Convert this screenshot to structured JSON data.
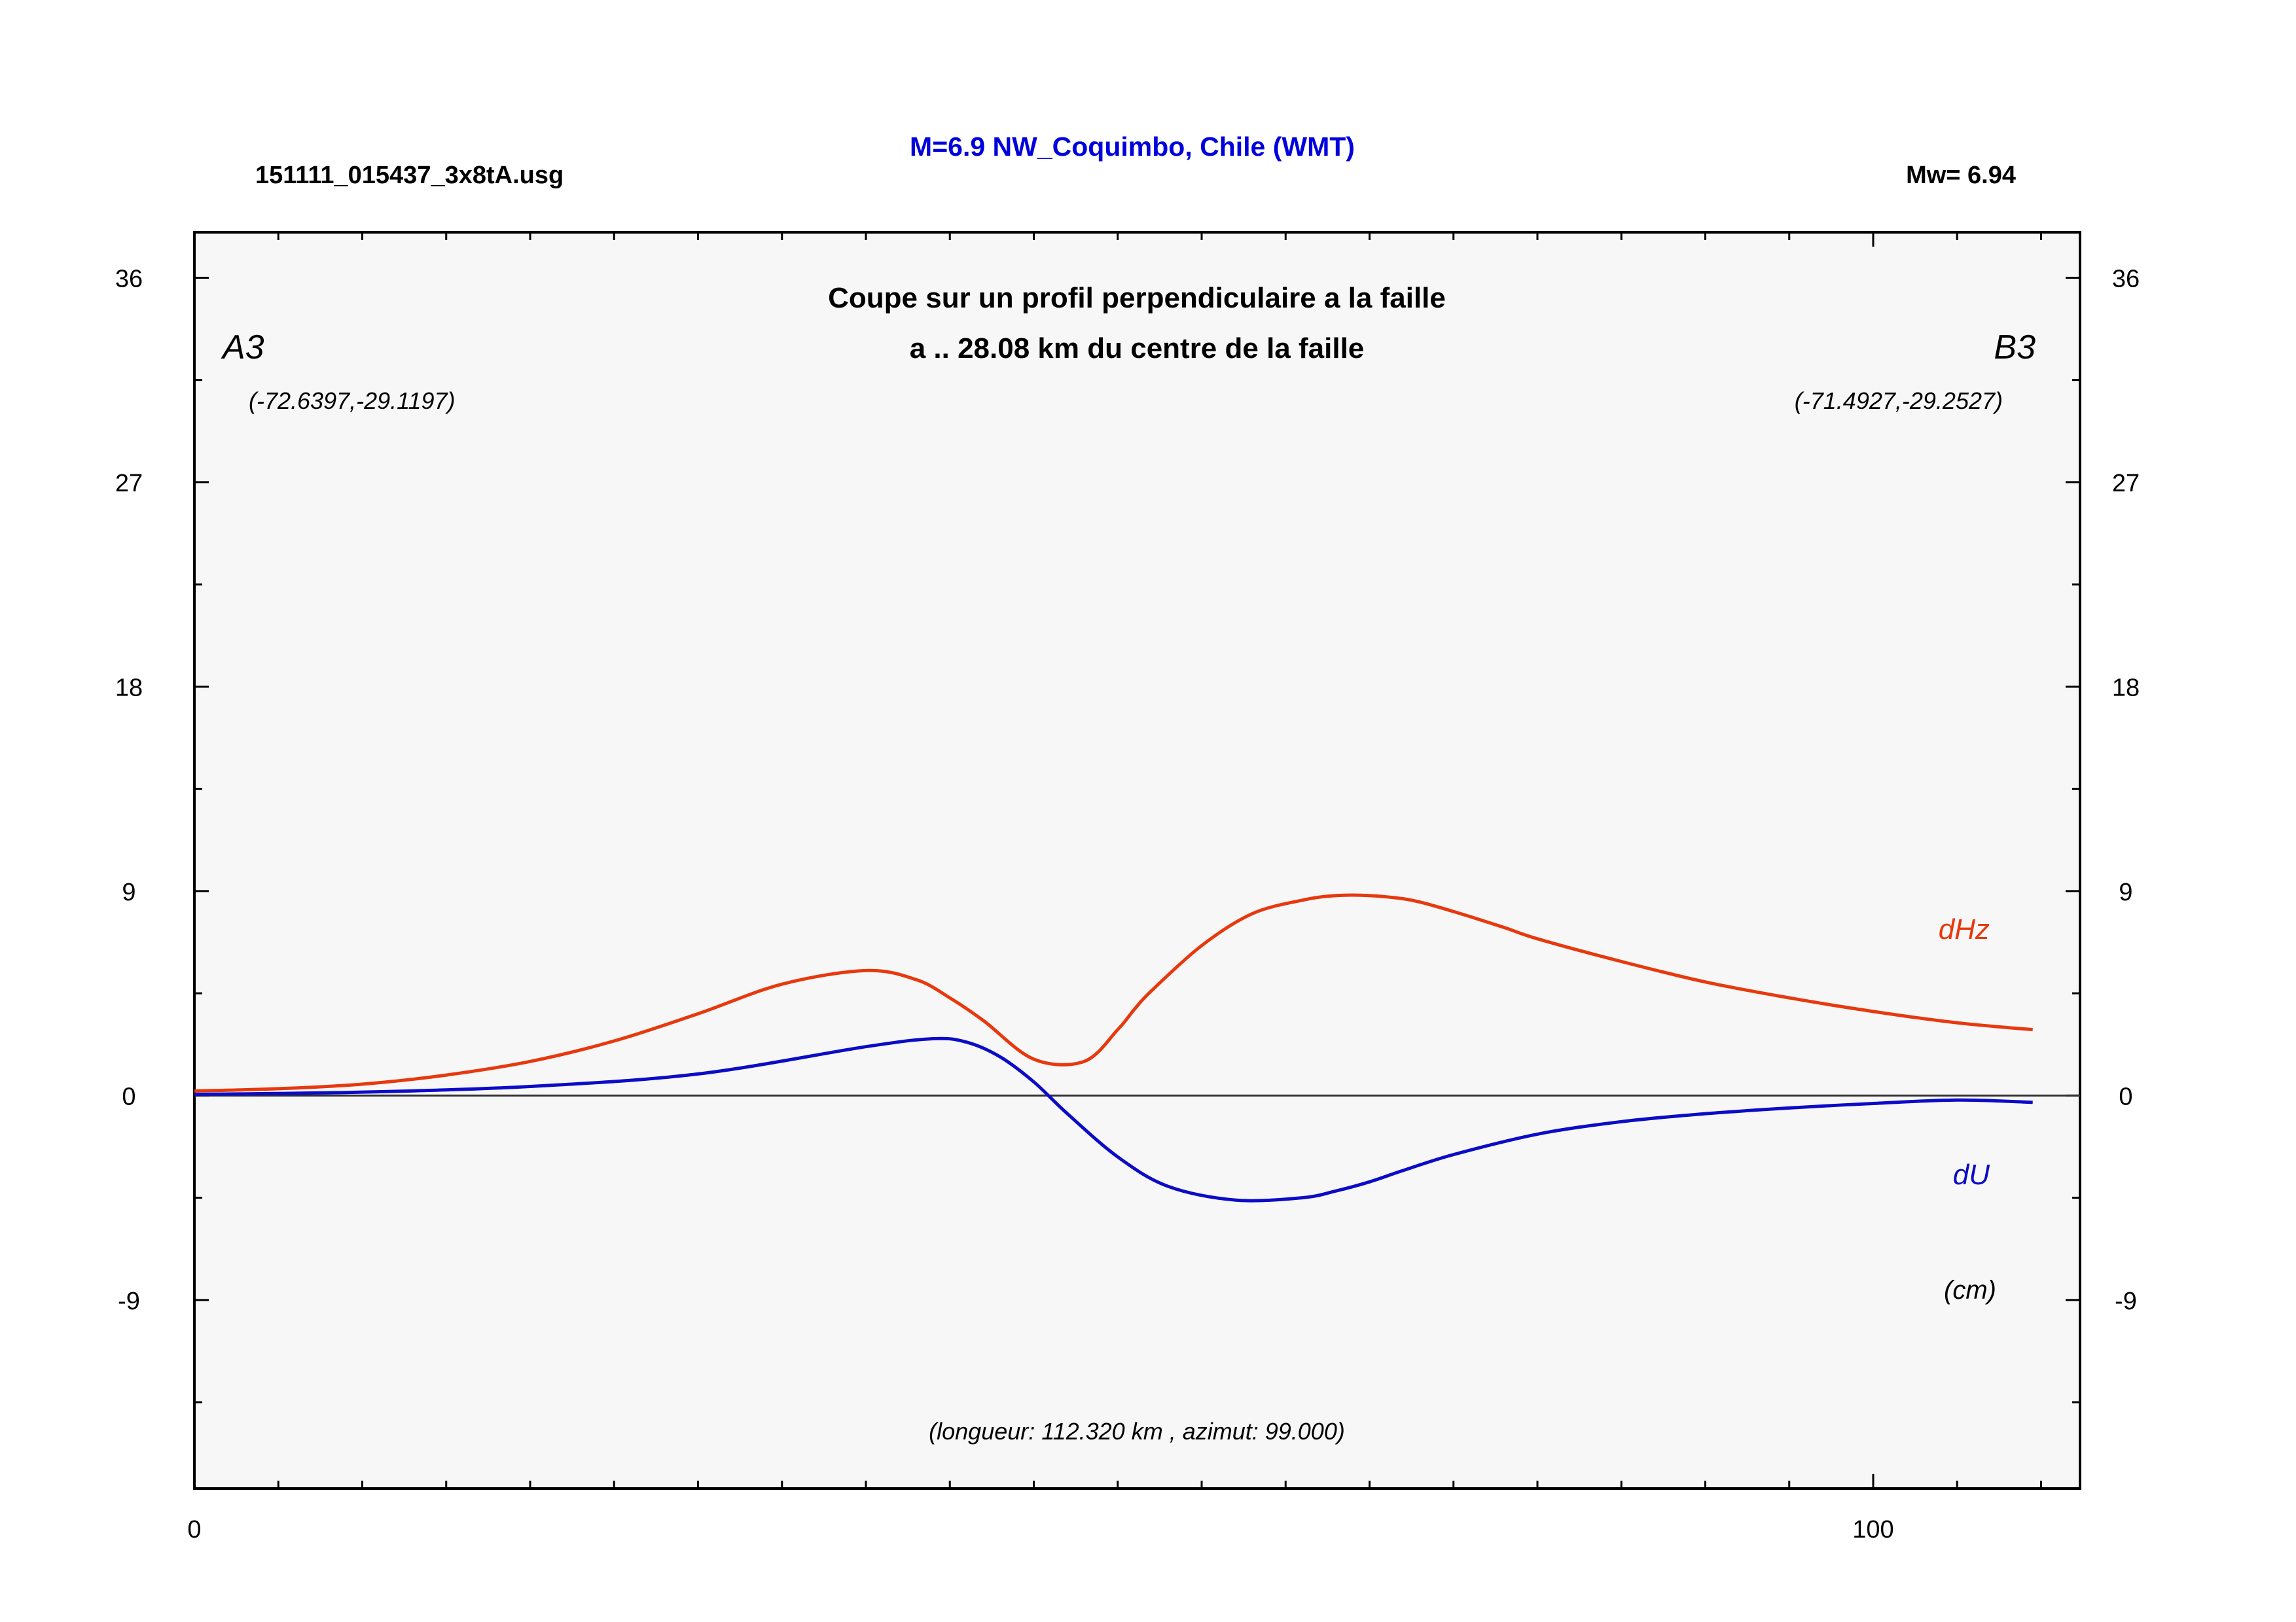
{
  "header": {
    "file_name": "151111_015437_3x8tA.usg",
    "event_title": "M=6.9 NW_Coquimbo, Chile (WMT)",
    "magnitude": "Mw= 6.94"
  },
  "colors": {
    "title_blue": "#0000dd",
    "dHz": "#e8380d",
    "dU": "#0b0bc8",
    "plot_bg": "#f7f7f7"
  },
  "chart_data": {
    "type": "line",
    "title": "Coupe sur un profil perpendiculaire a la faille",
    "subtitle": "a .. 28.08 km du centre de la faille",
    "point_a": {
      "label": "A3",
      "coords": "(-72.6397,-29.1197)"
    },
    "point_b": {
      "label": "B3",
      "coords": "(-71.4927,-29.2527)"
    },
    "units": "(cm)",
    "footer": "(longueur: 112.320 km , azimut: 99.000)",
    "xlim": [
      0,
      112.32
    ],
    "ylim": [
      -17.3,
      38
    ],
    "x_ticks": [
      0,
      100
    ],
    "x_tick_labels": [
      "0",
      "100"
    ],
    "y_ticks": [
      36,
      27,
      18,
      9,
      0,
      -9
    ],
    "y_tick_labels": [
      "36",
      "27",
      "18",
      "9",
      "0",
      "-9"
    ],
    "grid": false,
    "series": [
      {
        "name": "dHz",
        "x": [
          0,
          5,
          10,
          15,
          20,
          25,
          30,
          35,
          40,
          43,
          45,
          47,
          50,
          53,
          55,
          56,
          57,
          60,
          63,
          66,
          68,
          70,
          72.5,
          75,
          78,
          80,
          85,
          90,
          95,
          100,
          105,
          109.5
        ],
        "y": [
          0.2,
          0.3,
          0.5,
          0.9,
          1.5,
          2.4,
          3.6,
          4.9,
          5.5,
          5.1,
          4.3,
          3.3,
          1.6,
          1.5,
          2.9,
          3.8,
          4.6,
          6.6,
          8.0,
          8.6,
          8.8,
          8.8,
          8.6,
          8.1,
          7.4,
          6.9,
          5.9,
          5.0,
          4.3,
          3.7,
          3.2,
          2.9
        ]
      },
      {
        "name": "dU",
        "x": [
          0,
          10,
          20,
          30,
          40,
          44,
          46,
          48,
          50,
          52,
          55,
          58,
          62,
          66,
          68,
          70,
          72,
          75,
          80,
          85,
          90,
          95,
          100,
          105,
          109.5
        ],
        "y": [
          0.05,
          0.15,
          0.4,
          0.95,
          2.15,
          2.5,
          2.35,
          1.7,
          0.6,
          -0.8,
          -2.7,
          -4.0,
          -4.6,
          -4.5,
          -4.2,
          -3.8,
          -3.3,
          -2.6,
          -1.7,
          -1.15,
          -0.8,
          -0.55,
          -0.35,
          -0.2,
          -0.3
        ]
      }
    ]
  }
}
